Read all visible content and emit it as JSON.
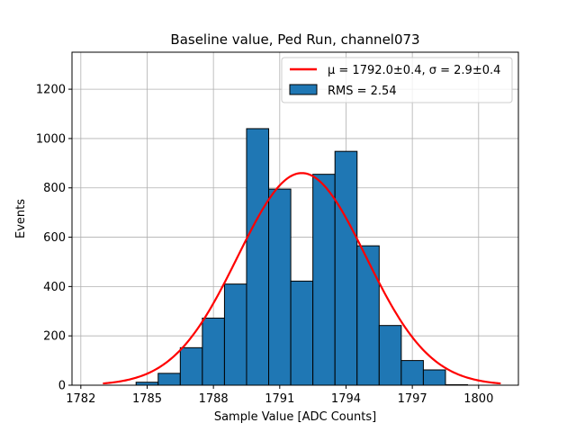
{
  "chart_data": {
    "type": "bar",
    "title": "Baseline value, Ped Run, channel073",
    "xlabel": "Sample Value [ADC Counts]",
    "ylabel": "Events",
    "xlim": [
      1781.6,
      1801.8
    ],
    "ylim": [
      0,
      1350
    ],
    "xticks": [
      1782,
      1785,
      1788,
      1791,
      1794,
      1797,
      1800
    ],
    "yticks": [
      0,
      200,
      400,
      600,
      800,
      1000,
      1200
    ],
    "grid": true,
    "legend_position": "top-right",
    "bin_edges": [
      1782.5,
      1783.5,
      1784.5,
      1785.5,
      1786.5,
      1787.5,
      1788.5,
      1789.5,
      1790.5,
      1791.5,
      1792.5,
      1793.5,
      1794.5,
      1795.5,
      1796.5,
      1797.5,
      1798.5,
      1799.5,
      1800.5
    ],
    "counts": [
      0,
      0,
      12,
      48,
      152,
      272,
      410,
      1040,
      795,
      422,
      855,
      948,
      565,
      242,
      100,
      62,
      2,
      0
    ],
    "bar_color": "#1f77b4",
    "fit": {
      "mu": 1792.0,
      "sigma": 2.9,
      "amplitude": 860,
      "x_range": [
        1783,
        1801
      ],
      "color": "#ff0000"
    },
    "legend": [
      {
        "label": "μ = 1792.0±0.4, σ = 2.9±0.4",
        "type": "line",
        "color": "#ff0000"
      },
      {
        "label": "RMS = 2.54",
        "type": "patch",
        "color": "#1f77b4"
      }
    ]
  }
}
